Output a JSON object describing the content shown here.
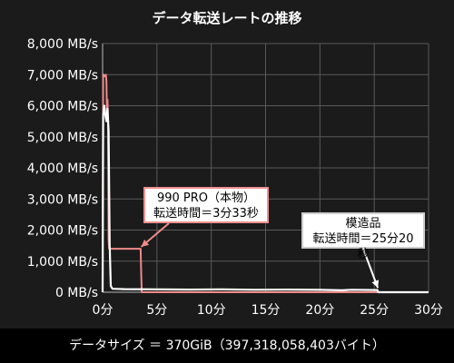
{
  "chart_data": {
    "type": "line",
    "title": "データ転送レートの推移",
    "xlabel": "",
    "ylabel": "",
    "x_ticks": [
      0,
      5,
      10,
      15,
      20,
      25,
      30
    ],
    "x_tick_labels": [
      "0分",
      "5分",
      "10分",
      "15分",
      "20分",
      "25分",
      "30分"
    ],
    "y_ticks": [
      0,
      1000,
      2000,
      3000,
      4000,
      5000,
      6000,
      7000,
      8000
    ],
    "y_tick_labels": [
      "0 MB/s",
      "1,000 MB/s",
      "2,000 MB/s",
      "3,000 MB/s",
      "4,000 MB/s",
      "5,000 MB/s",
      "6,000 MB/s",
      "7,000 MB/s",
      "8,000 MB/s"
    ],
    "xlim": [
      0,
      30
    ],
    "ylim": [
      0,
      8000
    ],
    "grid": true,
    "series": [
      {
        "name": "990 PRO（本物）",
        "color": "#f08a8a",
        "x": [
          0,
          0.05,
          0.1,
          0.2,
          0.3,
          0.35,
          0.4,
          0.45,
          0.5,
          0.55,
          0.6,
          0.7,
          3.5,
          3.55,
          3.6,
          30
        ],
        "y": [
          0,
          6900,
          7000,
          6950,
          7000,
          6800,
          5800,
          6200,
          5400,
          1700,
          1400,
          1400,
          1400,
          600,
          0,
          0
        ]
      },
      {
        "name": "模造品",
        "color": "#ffffff",
        "x": [
          0,
          0.05,
          0.15,
          0.25,
          0.35,
          0.45,
          0.55,
          0.65,
          0.75,
          0.9,
          2,
          5,
          8,
          11,
          14,
          17,
          20,
          22,
          23,
          25,
          25.3,
          25.35,
          30
        ],
        "y": [
          0,
          5700,
          6000,
          5700,
          5500,
          5900,
          5200,
          1500,
          200,
          110,
          100,
          90,
          85,
          90,
          80,
          85,
          75,
          60,
          80,
          70,
          70,
          0,
          0
        ]
      }
    ],
    "annotations": [
      {
        "series": "990 PRO（本物）",
        "label": "990 PRO（本物）",
        "detail": "転送時間＝3分33秒",
        "point_x": 3.55,
        "point_y": 1400
      },
      {
        "series": "模造品",
        "label": "模造品",
        "detail": "転送時間＝25分20秒",
        "point_x": 25.33,
        "point_y": 80
      }
    ]
  },
  "footer": "データサイズ ＝ 370GiB（397,318,058,403バイト）"
}
